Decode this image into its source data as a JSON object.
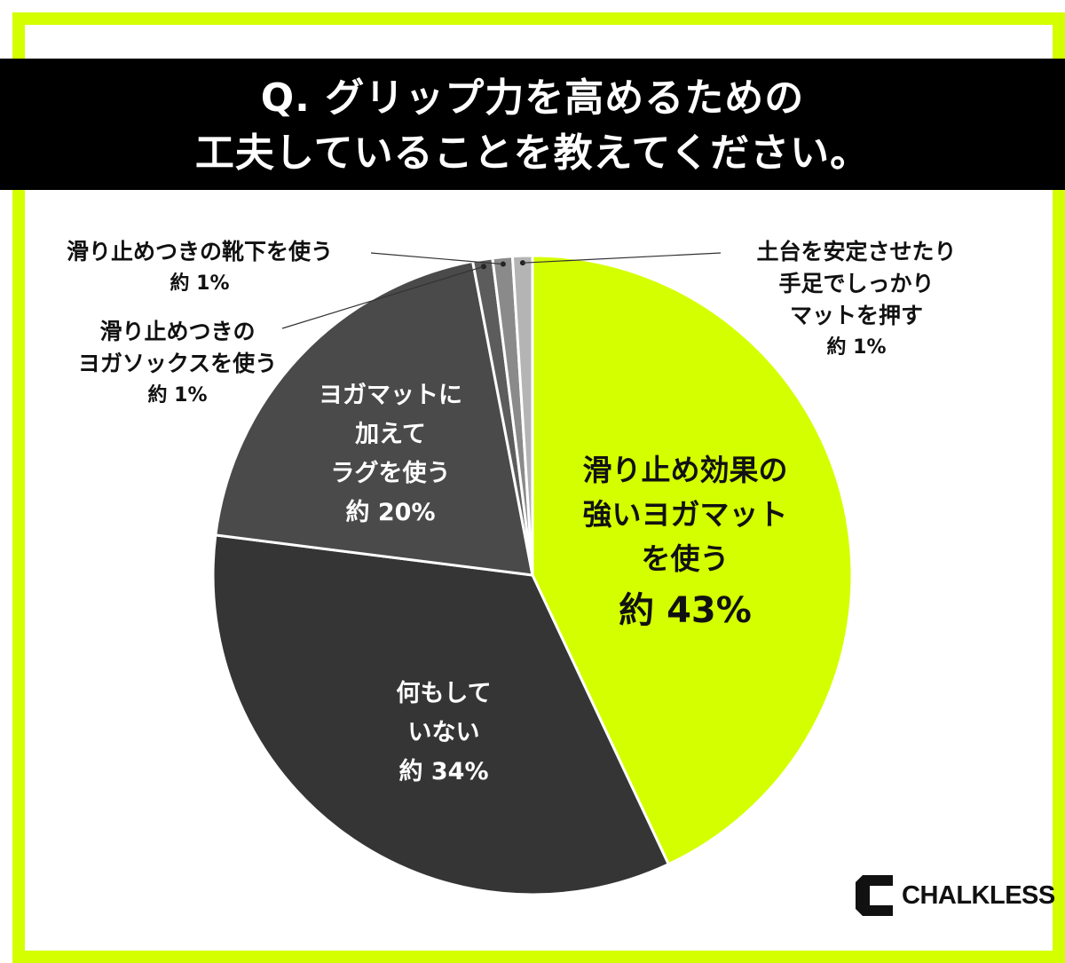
{
  "title": {
    "line1": "Q. グリップ力を高めるための",
    "line2": "工夫していることを教えてください。"
  },
  "chart_data": {
    "type": "pie",
    "start": "12 o'clock, clockwise",
    "slices": [
      {
        "key": "mat",
        "label_lines": [
          "滑り止め効果の",
          "強いヨガマット",
          "を使う"
        ],
        "value_text": "約 43%",
        "value": 43,
        "color": "#d4ff00"
      },
      {
        "key": "nothing",
        "label_lines": [
          "何もして",
          "いない"
        ],
        "value_text": "約 34%",
        "value": 34,
        "color": "#353535"
      },
      {
        "key": "rug",
        "label_lines": [
          "ヨガマットに",
          "加えて",
          "ラグを使う"
        ],
        "value_text": "約 20%",
        "value": 20,
        "color": "#4a4a4a"
      },
      {
        "key": "socks",
        "label_lines": [
          "滑り止めつきの",
          "ヨガソックスを使う"
        ],
        "value_text": "約 1%",
        "value": 1,
        "color": "#5c5c5c"
      },
      {
        "key": "tabi",
        "label_lines": [
          "滑り止めつきの靴下を使う"
        ],
        "value_text": "約 1%",
        "value": 1,
        "color": "#8a8a8a"
      },
      {
        "key": "stable",
        "label_lines": [
          "土台を安定させたり",
          "手足でしっかり",
          "マットを押す"
        ],
        "value_text": "約 1%",
        "value": 1,
        "color": "#b4b4b4"
      }
    ]
  },
  "logo": {
    "text": "CHALKLESS",
    "icon": "chalkless-c-icon"
  }
}
